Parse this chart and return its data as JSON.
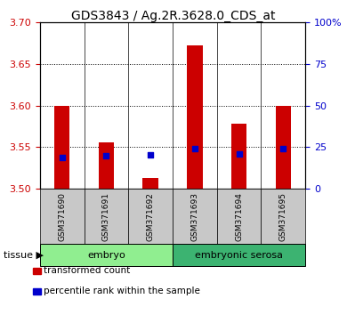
{
  "title": "GDS3843 / Ag.2R.3628.0_CDS_at",
  "samples": [
    "GSM371690",
    "GSM371691",
    "GSM371692",
    "GSM371693",
    "GSM371694",
    "GSM371695"
  ],
  "red_values": [
    3.6,
    3.556,
    3.513,
    3.672,
    3.578,
    3.6
  ],
  "blue_values": [
    3.538,
    3.54,
    3.541,
    3.548,
    3.542,
    3.548
  ],
  "baseline": 3.5,
  "ylim_left": [
    3.5,
    3.7
  ],
  "ylim_right": [
    0,
    100
  ],
  "yticks_left": [
    3.5,
    3.55,
    3.6,
    3.65,
    3.7
  ],
  "yticks_right": [
    0,
    25,
    50,
    75,
    100
  ],
  "ytick_labels_right": [
    "0",
    "25",
    "50",
    "75",
    "100%"
  ],
  "groups": [
    {
      "label": "embryo",
      "samples": [
        0,
        1,
        2
      ],
      "color": "#90EE90"
    },
    {
      "label": "embryonic serosa",
      "samples": [
        3,
        4,
        5
      ],
      "color": "#3CB371"
    }
  ],
  "bar_color": "#CC0000",
  "dot_color": "#0000CC",
  "bar_width": 0.35,
  "dot_size": 18,
  "grid_color": "black",
  "bg_color": "white",
  "plot_bg": "white",
  "left_tick_color": "#CC0000",
  "right_tick_color": "#0000CC",
  "legend_items": [
    {
      "label": "transformed count",
      "color": "#CC0000"
    },
    {
      "label": "percentile rank within the sample",
      "color": "#0000CC"
    }
  ],
  "title_fontsize": 10,
  "sample_fontsize": 6.5,
  "group_fontsize": 8,
  "legend_fontsize": 7.5,
  "tissue_fontsize": 8
}
